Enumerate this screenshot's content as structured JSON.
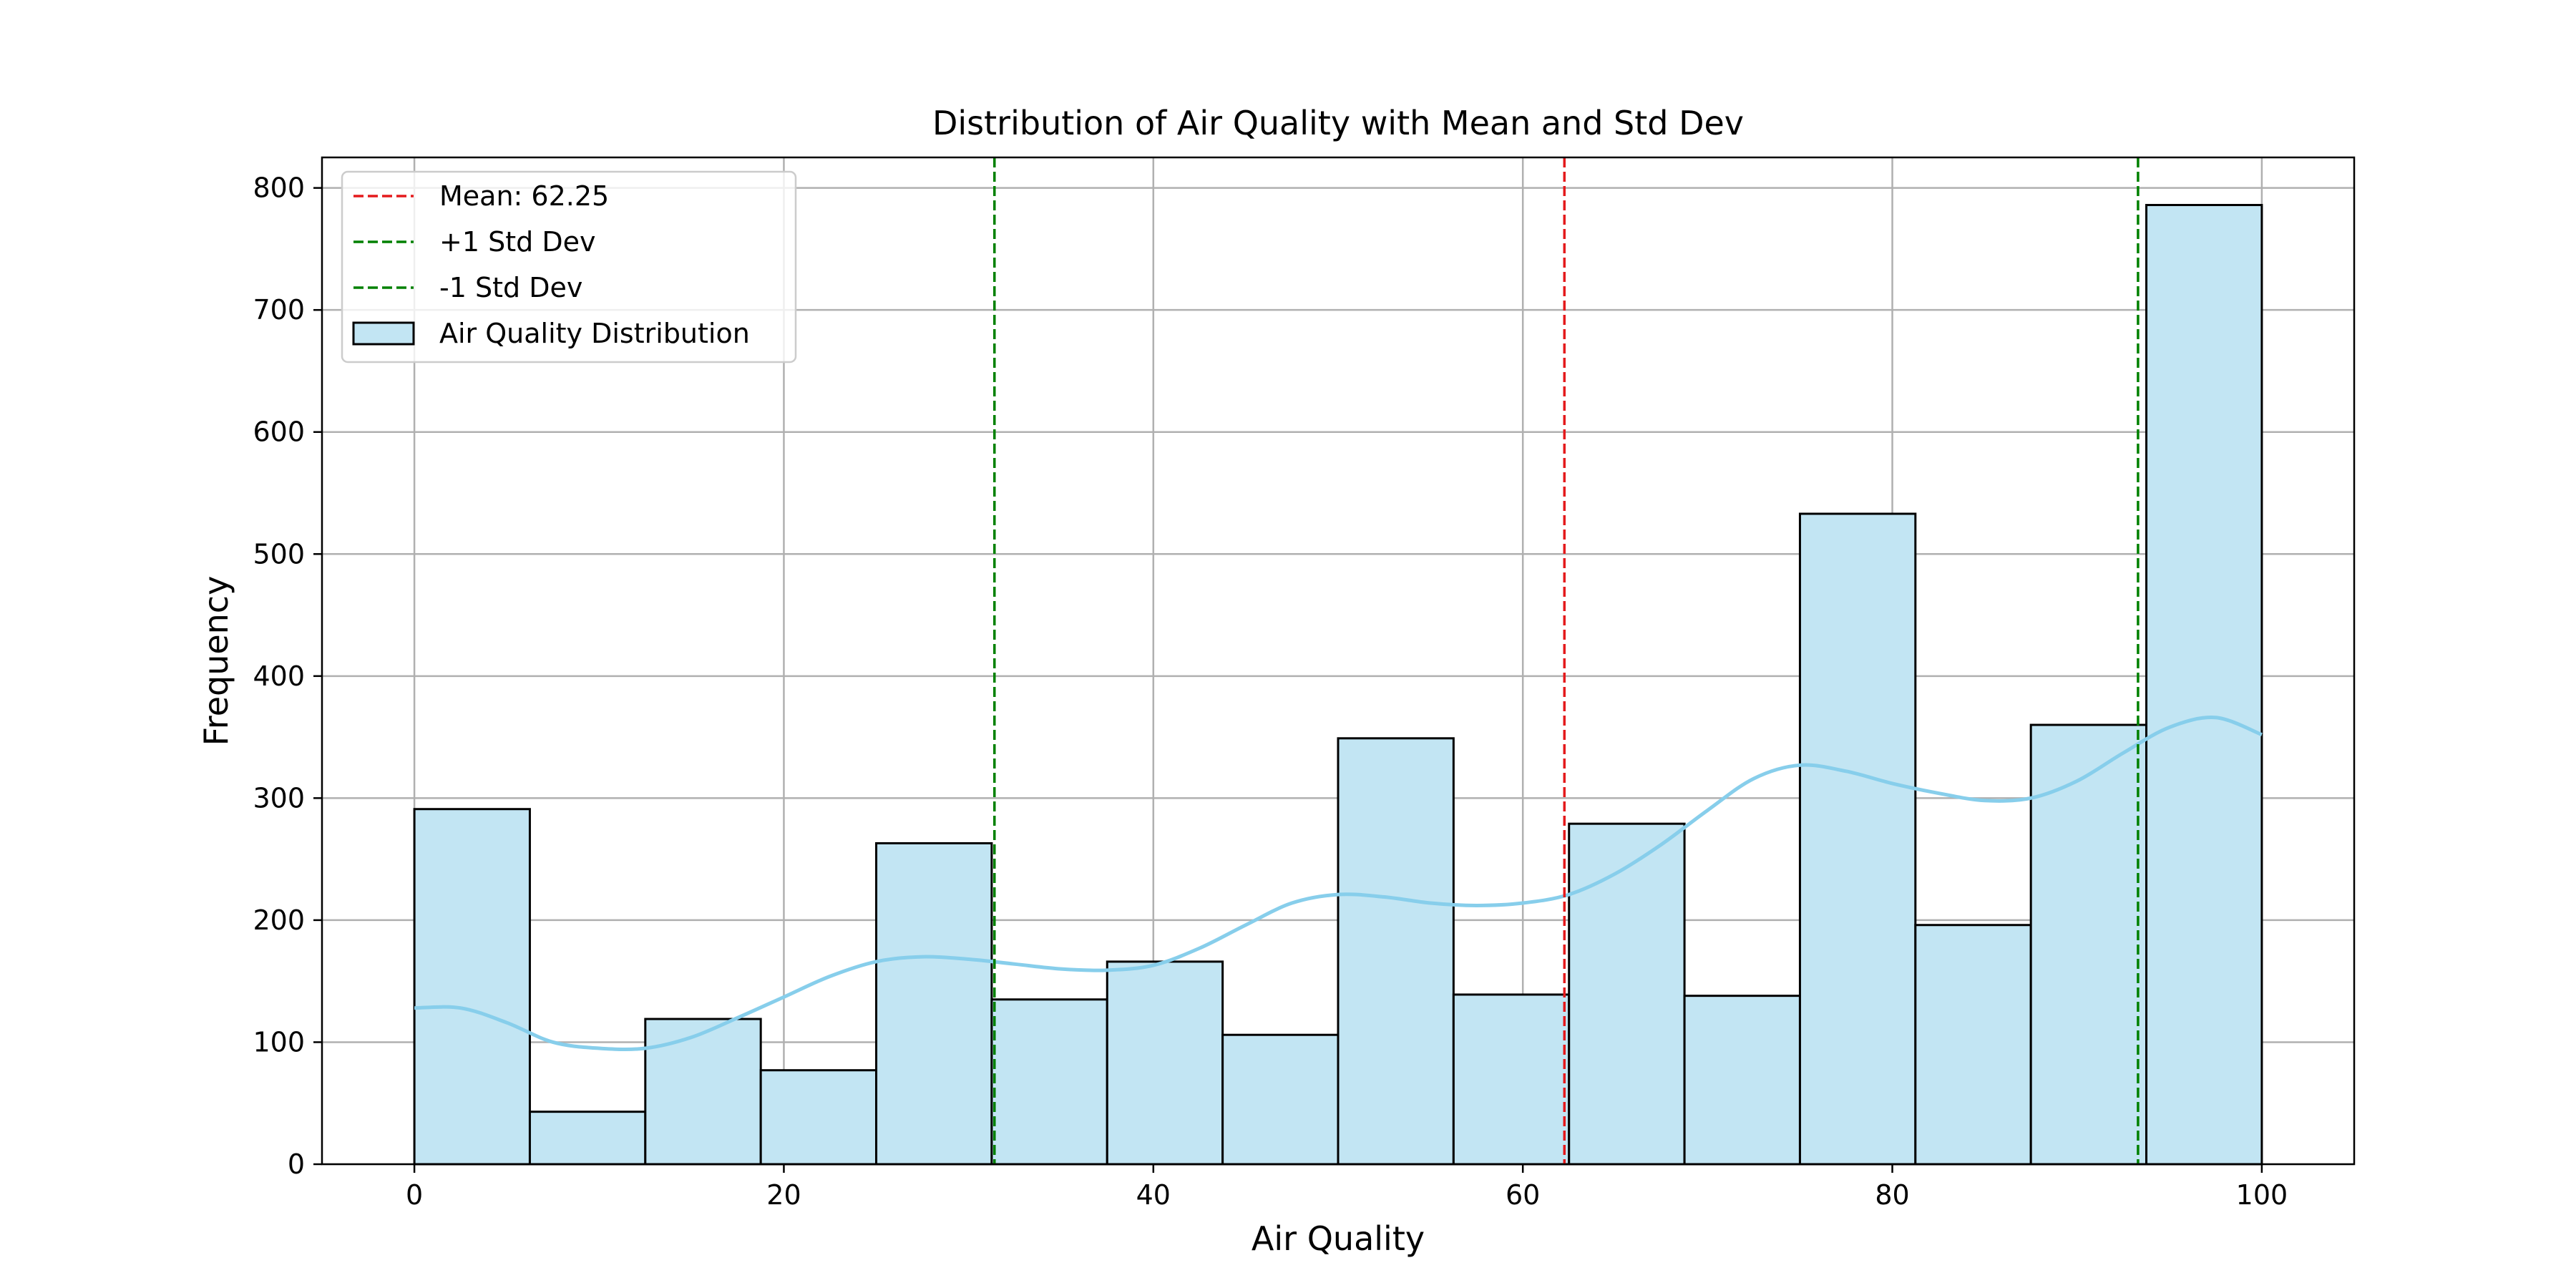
{
  "chart_data": {
    "type": "bar",
    "title": "Distribution of Air Quality with Mean and Std Dev",
    "xlabel": "Air Quality",
    "ylabel": "Frequency",
    "xlim": [
      -5,
      105
    ],
    "ylim": [
      0,
      825
    ],
    "grid": true,
    "legend_placement": "top-left",
    "bin_edges": [
      0,
      6.25,
      12.5,
      18.75,
      25,
      31.25,
      37.5,
      43.75,
      50,
      56.25,
      62.5,
      68.75,
      75,
      81.25,
      87.5,
      93.75,
      100
    ],
    "counts": [
      291,
      43,
      119,
      77,
      263,
      135,
      166,
      106,
      349,
      139,
      279,
      138,
      533,
      196,
      360,
      786
    ],
    "x_ticks": [
      0,
      20,
      40,
      60,
      80,
      100
    ],
    "y_ticks": [
      0,
      100,
      200,
      300,
      400,
      500,
      600,
      700,
      800
    ],
    "kde": {
      "name": "",
      "x": [
        0,
        2.5,
        5,
        7.5,
        10,
        12.5,
        15,
        17.5,
        20,
        22.5,
        25,
        27.5,
        30,
        32.5,
        35,
        37.5,
        40,
        42.5,
        45,
        47.5,
        50,
        52.5,
        55,
        57.5,
        60,
        62.5,
        65,
        67.5,
        70,
        72.5,
        75,
        77.5,
        80,
        82.5,
        85,
        87.5,
        90,
        92.5,
        95,
        97.5,
        100
      ],
      "y": [
        128,
        128,
        116,
        100,
        95,
        95,
        104,
        120,
        137,
        154,
        166,
        170,
        168,
        164,
        160,
        159,
        163,
        177,
        196,
        214,
        221,
        219,
        214,
        212,
        214,
        221,
        238,
        262,
        290,
        316,
        327,
        322,
        312,
        304,
        298,
        300,
        314,
        337,
        358,
        366,
        352
      ]
    },
    "vlines": [
      {
        "label": "Mean: 62.25",
        "x": 62.25,
        "color": "#e41a1c"
      },
      {
        "label": "+1 Std Dev",
        "x": 93.3,
        "color": "#008000"
      },
      {
        "label": "-1 Std Dev",
        "x": 31.4,
        "color": "#008000"
      }
    ],
    "hist_label": "Air Quality Distribution",
    "colors": {
      "bar_fill": "#c2e5f3",
      "bar_edge": "#000000",
      "kde": "#87ceeb",
      "grid": "#b0b0b0"
    }
  }
}
